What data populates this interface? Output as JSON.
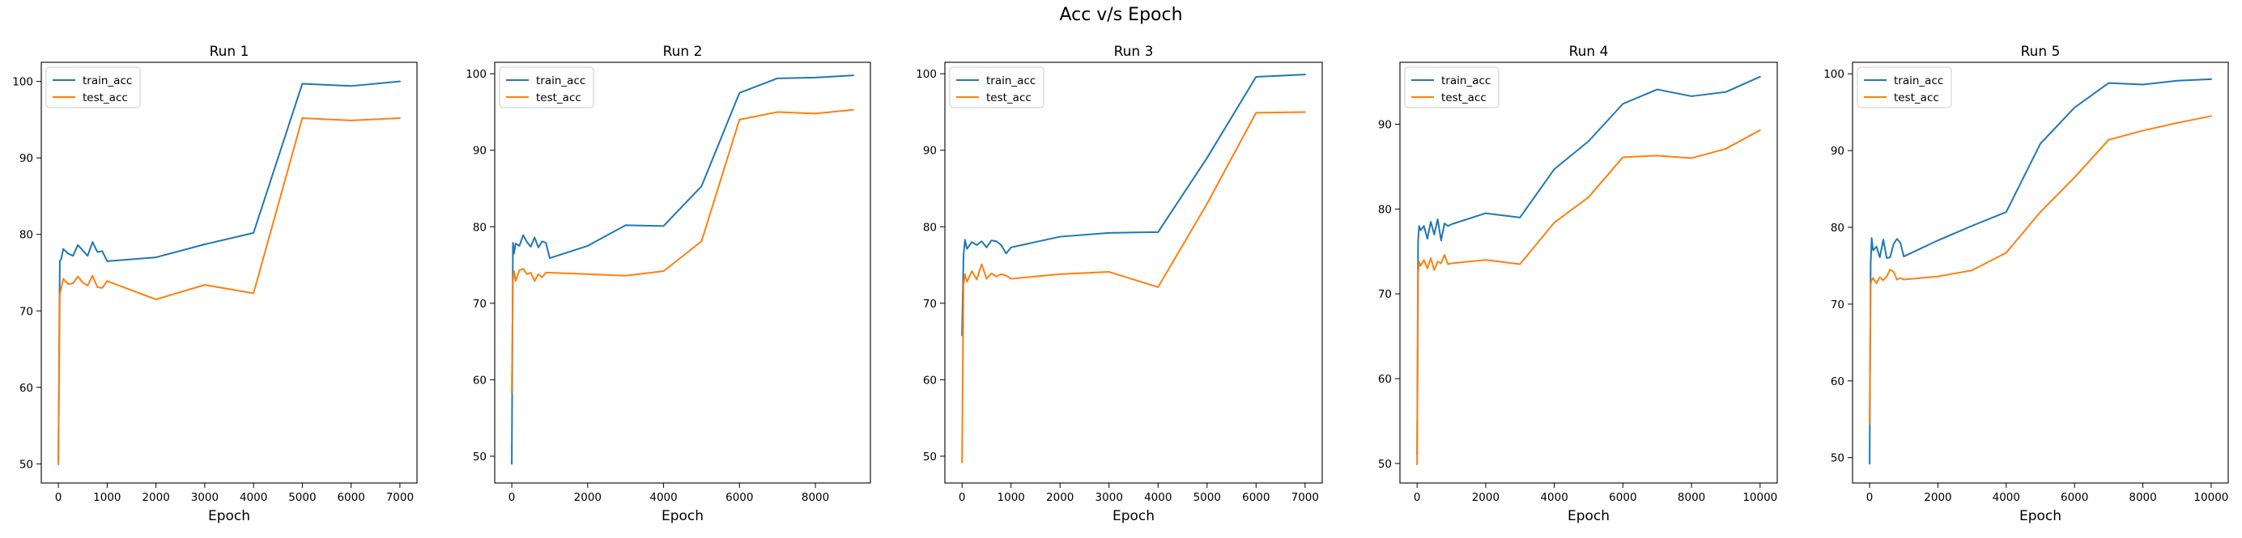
{
  "figure": {
    "suptitle": "Acc v/s Epoch"
  },
  "colors": {
    "train": "#1f77b4",
    "test": "#ff7f0e"
  },
  "chart_data": [
    {
      "type": "line",
      "title": "Run 1",
      "xlabel": "Epoch",
      "ylabel": "",
      "xlim": [
        -350,
        7350
      ],
      "ylim": [
        47.5,
        102.5
      ],
      "xticks": [
        0,
        1000,
        2000,
        3000,
        4000,
        5000,
        6000,
        7000
      ],
      "yticks": [
        50,
        60,
        70,
        80,
        90,
        100
      ],
      "grid": false,
      "legend": "upper left",
      "series": [
        {
          "name": "train_acc",
          "x": [
            0,
            30,
            60,
            100,
            200,
            300,
            400,
            500,
            600,
            700,
            800,
            900,
            1000,
            2000,
            3000,
            4000,
            5000,
            6000,
            7000
          ],
          "y": [
            50.5,
            76.5,
            76.8,
            78.1,
            77.5,
            77.2,
            78.6,
            77.9,
            77.2,
            79.0,
            77.7,
            77.8,
            76.5,
            77.0,
            78.7,
            80.2,
            99.7,
            99.4,
            100.0
          ]
        },
        {
          "name": "test_acc",
          "x": [
            0,
            30,
            60,
            100,
            200,
            300,
            400,
            500,
            600,
            700,
            800,
            900,
            1000,
            2000,
            3000,
            4000,
            5000,
            6000,
            7000
          ],
          "y": [
            49.9,
            72.2,
            73.0,
            74.2,
            73.5,
            73.6,
            74.5,
            73.7,
            73.3,
            74.6,
            73.1,
            73.0,
            73.9,
            71.5,
            73.4,
            72.3,
            95.2,
            94.9,
            95.2
          ]
        }
      ]
    },
    {
      "type": "line",
      "title": "Run 2",
      "xlabel": "Epoch",
      "ylabel": "",
      "xlim": [
        -450,
        9450
      ],
      "ylim": [
        46.5,
        101.5
      ],
      "xticks": [
        0,
        2000,
        4000,
        6000,
        8000
      ],
      "yticks": [
        50,
        60,
        70,
        80,
        90,
        100
      ],
      "grid": false,
      "legend": "upper left",
      "series": [
        {
          "name": "train_acc",
          "x": [
            0,
            30,
            60,
            100,
            200,
            300,
            400,
            500,
            600,
            700,
            800,
            900,
            1000,
            2000,
            3000,
            4000,
            5000,
            6000,
            7000,
            8000,
            9000
          ],
          "y": [
            49.0,
            77.9,
            76.5,
            77.8,
            77.5,
            78.9,
            78.0,
            77.4,
            78.6,
            77.3,
            78.1,
            77.9,
            75.9,
            77.5,
            80.2,
            80.1,
            85.3,
            97.5,
            99.4,
            99.5,
            99.8
          ]
        },
        {
          "name": "test_acc",
          "x": [
            0,
            30,
            60,
            100,
            200,
            300,
            400,
            500,
            600,
            700,
            800,
            900,
            1000,
            2000,
            3000,
            4000,
            5000,
            6000,
            7000,
            8000,
            9000
          ],
          "y": [
            58.2,
            72.9,
            74.2,
            72.9,
            74.3,
            74.5,
            73.8,
            74.0,
            72.9,
            73.8,
            73.4,
            74.0,
            74.0,
            73.8,
            73.6,
            74.2,
            78.1,
            94.0,
            95.0,
            94.8,
            95.3
          ]
        }
      ]
    },
    {
      "type": "line",
      "title": "Run 3",
      "xlabel": "Epoch",
      "ylabel": "",
      "xlim": [
        -350,
        7350
      ],
      "ylim": [
        46.5,
        101.5
      ],
      "xticks": [
        0,
        1000,
        2000,
        3000,
        4000,
        5000,
        6000,
        7000
      ],
      "yticks": [
        50,
        60,
        70,
        80,
        90,
        100
      ],
      "grid": false,
      "legend": "upper left",
      "series": [
        {
          "name": "train_acc",
          "x": [
            0,
            30,
            60,
            100,
            200,
            300,
            400,
            500,
            600,
            700,
            800,
            900,
            1000,
            2000,
            3000,
            4000,
            5000,
            6000,
            7000
          ],
          "y": [
            65.8,
            76.2,
            78.3,
            77.1,
            78.0,
            77.6,
            78.1,
            77.3,
            78.2,
            78.1,
            77.6,
            76.5,
            77.3,
            78.7,
            79.2,
            79.3,
            89.0,
            99.6,
            99.9
          ]
        },
        {
          "name": "test_acc",
          "x": [
            0,
            30,
            60,
            100,
            200,
            300,
            400,
            500,
            600,
            700,
            800,
            900,
            1000,
            2000,
            3000,
            4000,
            5000,
            6000,
            7000
          ],
          "y": [
            49.2,
            72.5,
            73.8,
            72.8,
            74.2,
            73.1,
            75.1,
            73.2,
            73.9,
            73.5,
            73.8,
            73.6,
            73.2,
            73.8,
            74.1,
            72.1,
            83.0,
            94.9,
            95.0
          ]
        }
      ]
    },
    {
      "type": "line",
      "title": "Run 4",
      "xlabel": "Epoch",
      "ylabel": "",
      "xlim": [
        -500,
        10500
      ],
      "ylim": [
        47.7,
        97.3
      ],
      "xticks": [
        0,
        2000,
        4000,
        6000,
        8000,
        10000
      ],
      "yticks": [
        50,
        60,
        70,
        80,
        90
      ],
      "grid": false,
      "legend": "upper left",
      "series": [
        {
          "name": "train_acc",
          "x": [
            0,
            30,
            60,
            100,
            200,
            300,
            400,
            500,
            600,
            700,
            800,
            900,
            1000,
            2000,
            3000,
            4000,
            5000,
            6000,
            7000,
            8000,
            9000,
            10000
          ],
          "y": [
            51.0,
            76.3,
            78.0,
            77.5,
            78.0,
            76.5,
            78.5,
            77.0,
            78.8,
            76.3,
            78.3,
            78.0,
            78.2,
            79.5,
            79.0,
            84.7,
            88.0,
            92.4,
            94.1,
            93.3,
            93.8,
            95.6
          ]
        },
        {
          "name": "test_acc",
          "x": [
            0,
            30,
            60,
            100,
            200,
            300,
            400,
            500,
            600,
            700,
            800,
            900,
            1000,
            2000,
            3000,
            4000,
            5000,
            6000,
            7000,
            8000,
            9000,
            10000
          ],
          "y": [
            49.9,
            72.5,
            73.8,
            73.3,
            74.0,
            73.0,
            74.2,
            72.8,
            73.8,
            73.6,
            74.6,
            73.5,
            73.6,
            74.0,
            73.5,
            78.4,
            81.4,
            86.1,
            86.3,
            86.0,
            87.1,
            89.3
          ]
        }
      ]
    },
    {
      "type": "line",
      "title": "Run 5",
      "xlabel": "Epoch",
      "ylabel": "",
      "xlim": [
        -500,
        10500
      ],
      "ylim": [
        46.7,
        101.5
      ],
      "xticks": [
        0,
        2000,
        4000,
        6000,
        8000,
        10000
      ],
      "yticks": [
        50,
        60,
        70,
        80,
        90,
        100
      ],
      "grid": false,
      "legend": "upper left",
      "series": [
        {
          "name": "train_acc",
          "x": [
            0,
            30,
            60,
            100,
            200,
            300,
            400,
            500,
            600,
            700,
            800,
            900,
            1000,
            2000,
            3000,
            4000,
            5000,
            6000,
            7000,
            8000,
            9000,
            10000
          ],
          "y": [
            49.2,
            75.2,
            78.6,
            77.0,
            77.5,
            76.1,
            78.4,
            76.0,
            76.1,
            77.8,
            78.5,
            78.0,
            76.2,
            78.3,
            80.2,
            82.0,
            90.9,
            95.6,
            98.8,
            98.6,
            99.1,
            99.3
          ]
        },
        {
          "name": "test_acc",
          "x": [
            0,
            30,
            60,
            100,
            200,
            300,
            400,
            500,
            600,
            700,
            800,
            900,
            1000,
            2000,
            3000,
            4000,
            5000,
            6000,
            7000,
            8000,
            9000,
            10000
          ],
          "y": [
            54.4,
            72.6,
            73.1,
            73.4,
            72.7,
            73.5,
            73.1,
            73.6,
            74.5,
            74.2,
            73.2,
            73.4,
            73.2,
            73.6,
            74.4,
            76.7,
            82.0,
            86.5,
            91.4,
            92.6,
            93.6,
            94.5
          ]
        }
      ]
    }
  ]
}
